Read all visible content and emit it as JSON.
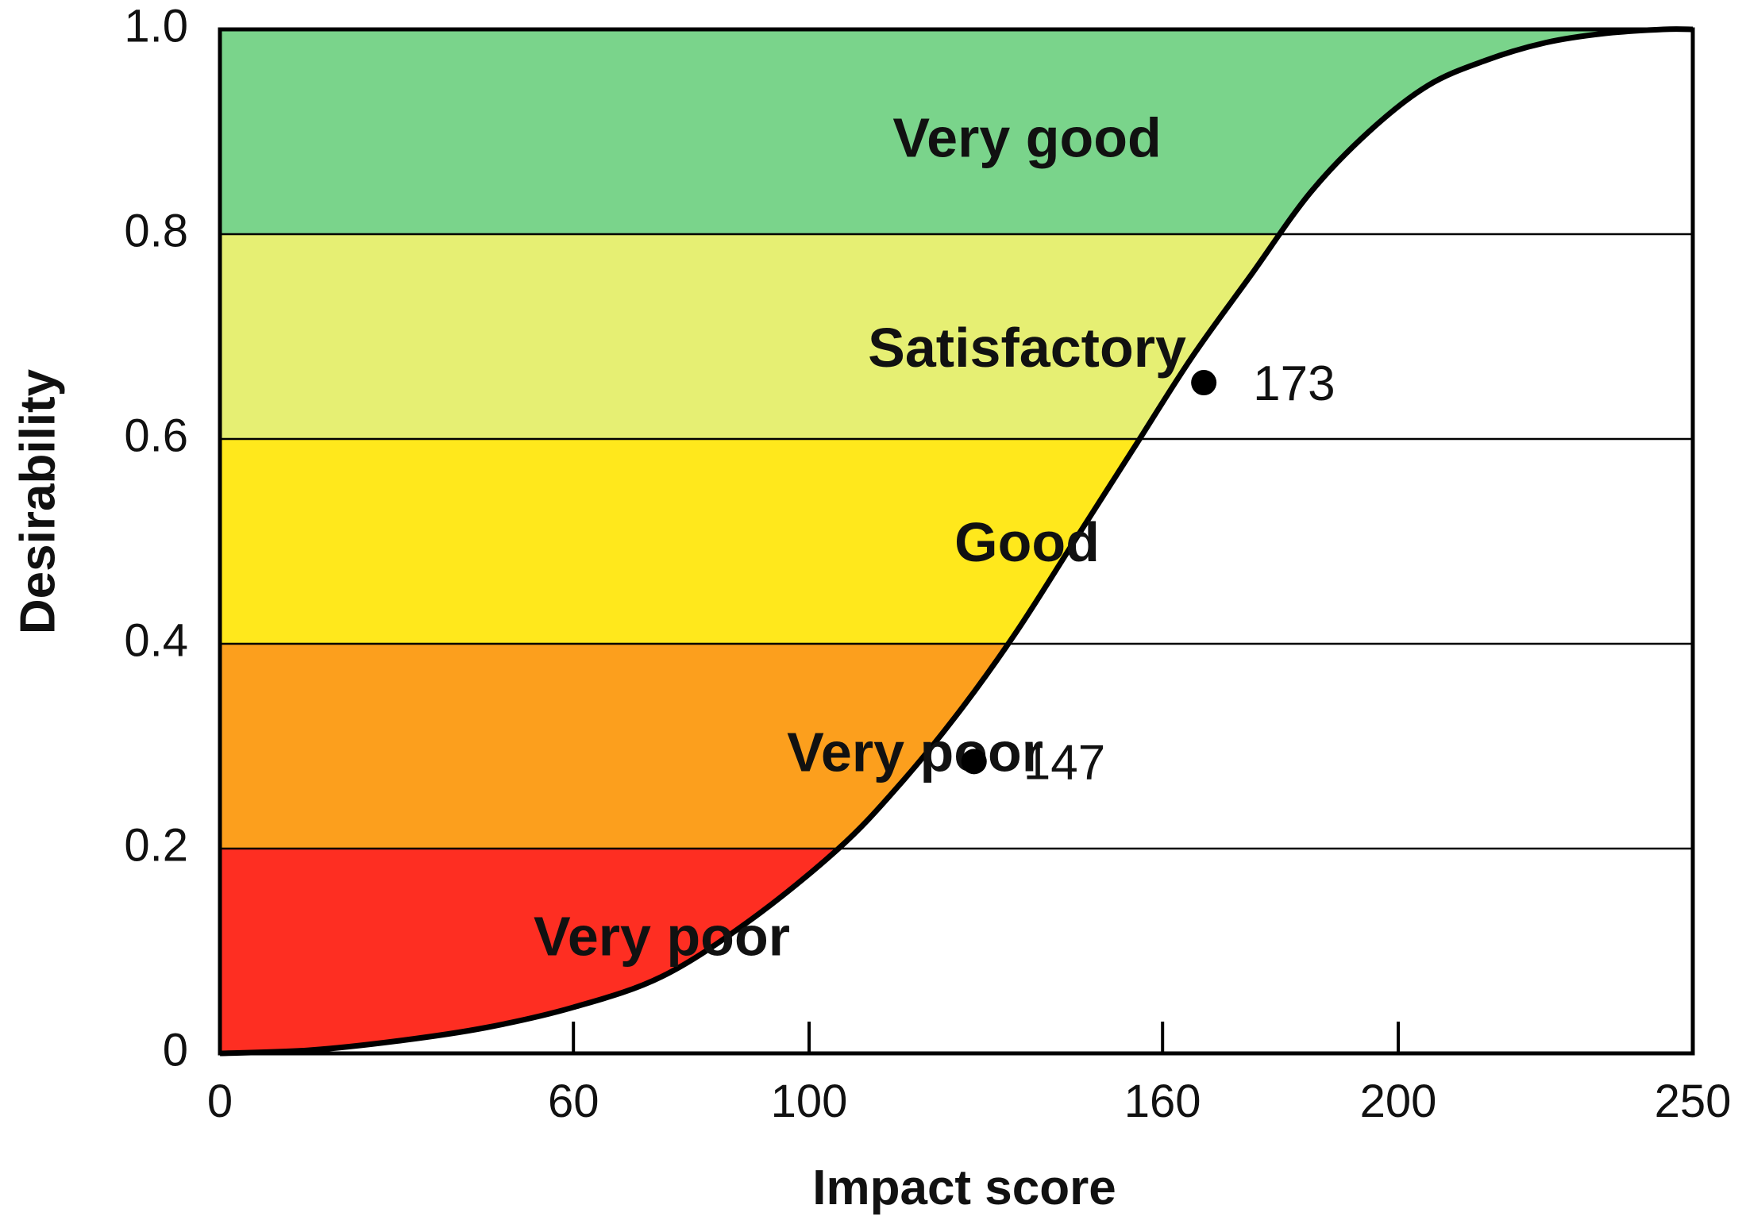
{
  "chart_data": {
    "type": "area",
    "title": "",
    "xlabel": "Impact score",
    "ylabel": "Desirability",
    "xlim": [
      0,
      250
    ],
    "ylim": [
      0,
      1
    ],
    "x_ticks": [
      {
        "value": 0,
        "label": "0"
      },
      {
        "value": 60,
        "label": "60"
      },
      {
        "value": 100,
        "label": "100"
      },
      {
        "value": 160,
        "label": "160"
      },
      {
        "value": 200,
        "label": "200"
      },
      {
        "value": 250,
        "label": "250"
      }
    ],
    "y_ticks": [
      {
        "value": 0,
        "label": "0"
      },
      {
        "value": 0.2,
        "label": "0.2"
      },
      {
        "value": 0.4,
        "label": "0.4"
      },
      {
        "value": 0.6,
        "label": "0.6"
      },
      {
        "value": 0.8,
        "label": "0.8"
      },
      {
        "value": 1.0,
        "label": "1.0"
      }
    ],
    "bands": [
      {
        "label": "Very poor",
        "y0": 0.0,
        "y1": 0.2,
        "color": "#fe2e22"
      },
      {
        "label": "Very poor",
        "y0": 0.2,
        "y1": 0.4,
        "color": "#fc9f1d"
      },
      {
        "label": "Good",
        "y0": 0.4,
        "y1": 0.6,
        "color": "#ffe81c"
      },
      {
        "label": "Satisfactory",
        "y0": 0.6,
        "y1": 0.8,
        "color": "#e6ef73"
      },
      {
        "label": "Very good",
        "y0": 0.8,
        "y1": 1.0,
        "color": "#7ad48b"
      }
    ],
    "curve": {
      "x": [
        0,
        15,
        30,
        45,
        60,
        75,
        90,
        105,
        115,
        125,
        135,
        145,
        155,
        165,
        175,
        185,
        195,
        205,
        215,
        225,
        235,
        245,
        250
      ],
      "y": [
        0,
        0.003,
        0.012,
        0.025,
        0.045,
        0.075,
        0.13,
        0.2,
        0.26,
        0.33,
        0.41,
        0.5,
        0.59,
        0.68,
        0.76,
        0.84,
        0.9,
        0.945,
        0.97,
        0.987,
        0.996,
        1.0,
        1.0
      ]
    },
    "points": [
      {
        "x": 128,
        "y": 0.285,
        "label": "147"
      },
      {
        "x": 167,
        "y": 0.655,
        "label": "173"
      }
    ],
    "grid": "horizontal",
    "legend": "none"
  }
}
